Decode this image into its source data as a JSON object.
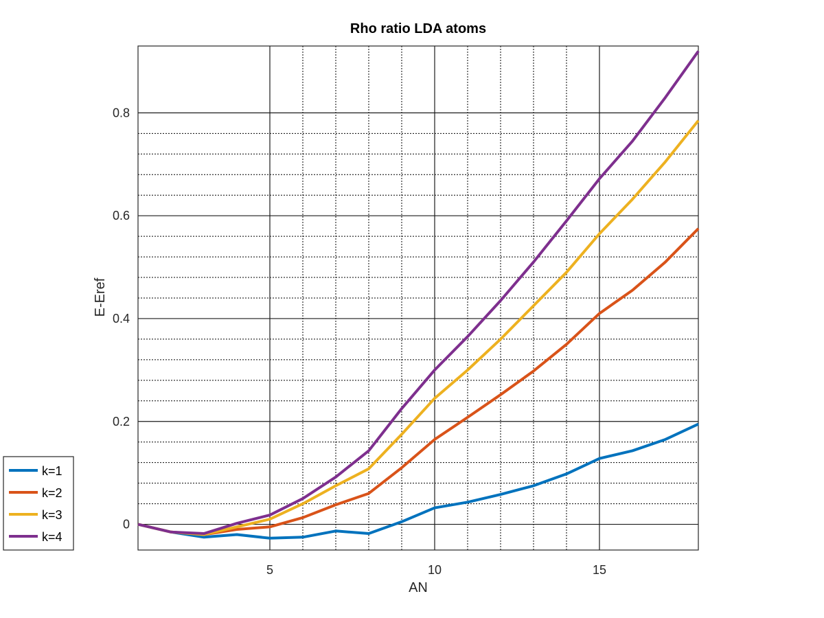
{
  "chart_data": {
    "type": "line",
    "title": "Rho ratio LDA atoms",
    "xlabel": "AN",
    "ylabel": "E-Eref",
    "xlim": [
      1,
      18
    ],
    "ylim": [
      -0.05,
      0.93
    ],
    "x_major_ticks": [
      5,
      10,
      15
    ],
    "x_tick_labels": [
      "5",
      "10",
      "15"
    ],
    "y_major_ticks": [
      0,
      0.2,
      0.4,
      0.6,
      0.8
    ],
    "y_tick_labels": [
      "0",
      "0.2",
      "0.4",
      "0.6",
      "0.8"
    ],
    "x_minor_ticks": [
      6,
      7,
      8,
      9,
      11,
      12,
      13,
      14
    ],
    "y_minor_ticks": [
      0.04,
      0.08,
      0.12,
      0.16,
      0.24,
      0.28,
      0.32,
      0.36,
      0.44,
      0.48,
      0.52,
      0.56,
      0.64,
      0.68,
      0.72,
      0.76
    ],
    "grid": true,
    "minor_grid": true,
    "legend_position": "bottom-left outside",
    "x": [
      1,
      2,
      3,
      4,
      5,
      6,
      7,
      8,
      9,
      10,
      11,
      12,
      13,
      14,
      15,
      16,
      17,
      18
    ],
    "series": [
      {
        "name": "k=1",
        "color": "#0072BD",
        "values": [
          0,
          -0.015,
          -0.025,
          -0.02,
          -0.027,
          -0.025,
          -0.013,
          -0.018,
          0.005,
          0.032,
          0.043,
          0.058,
          0.075,
          0.098,
          0.128,
          0.143,
          0.165,
          0.195
        ]
      },
      {
        "name": "k=2",
        "color": "#D95319",
        "values": [
          0,
          -0.015,
          -0.02,
          -0.01,
          -0.005,
          0.013,
          0.038,
          0.06,
          0.11,
          0.165,
          0.208,
          0.252,
          0.298,
          0.35,
          0.41,
          0.455,
          0.51,
          0.575
        ]
      },
      {
        "name": "k=3",
        "color": "#EDB120",
        "values": [
          0,
          -0.015,
          -0.02,
          -0.005,
          0.01,
          0.04,
          0.075,
          0.108,
          0.175,
          0.245,
          0.3,
          0.36,
          0.425,
          0.49,
          0.565,
          0.632,
          0.705,
          0.785
        ]
      },
      {
        "name": "k=4",
        "color": "#7E2F8E",
        "values": [
          0,
          -0.015,
          -0.018,
          0.002,
          0.018,
          0.05,
          0.092,
          0.143,
          0.225,
          0.3,
          0.365,
          0.435,
          0.51,
          0.59,
          0.672,
          0.745,
          0.83,
          0.92
        ]
      }
    ]
  }
}
